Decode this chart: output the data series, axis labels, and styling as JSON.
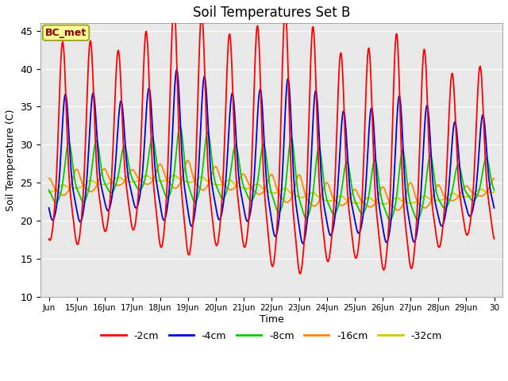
{
  "title": "Soil Temperatures Set B",
  "xlabel": "Time",
  "ylabel": "Soil Temperature (C)",
  "ylim": [
    10,
    46
  ],
  "yticks": [
    10,
    15,
    20,
    25,
    30,
    35,
    40,
    45
  ],
  "annotation": "BC_met",
  "series_colors": {
    "-2cm": "#FF0000",
    "-4cm": "#0000DD",
    "-8cm": "#00CC00",
    "-16cm": "#FF8800",
    "-32cm": "#CCCC00"
  },
  "xticklabels": [
    "Jun",
    "15Jun",
    "16Jun",
    "17Jun",
    "18Jun",
    "19Jun",
    "20Jun",
    "21Jun",
    "22Jun",
    "23Jun",
    "24Jun",
    "25Jun",
    "26Jun",
    "27Jun",
    "28Jun",
    "29Jun",
    "30"
  ],
  "plot_bg": "#E8E8E8",
  "grid_color": "white",
  "legend_labels": [
    "-2cm",
    "-4cm",
    "-8cm",
    "-16cm",
    "-32cm"
  ],
  "legend_colors": [
    "#FF0000",
    "#0000DD",
    "#00CC00",
    "#FF8800",
    "#CCCC00"
  ]
}
